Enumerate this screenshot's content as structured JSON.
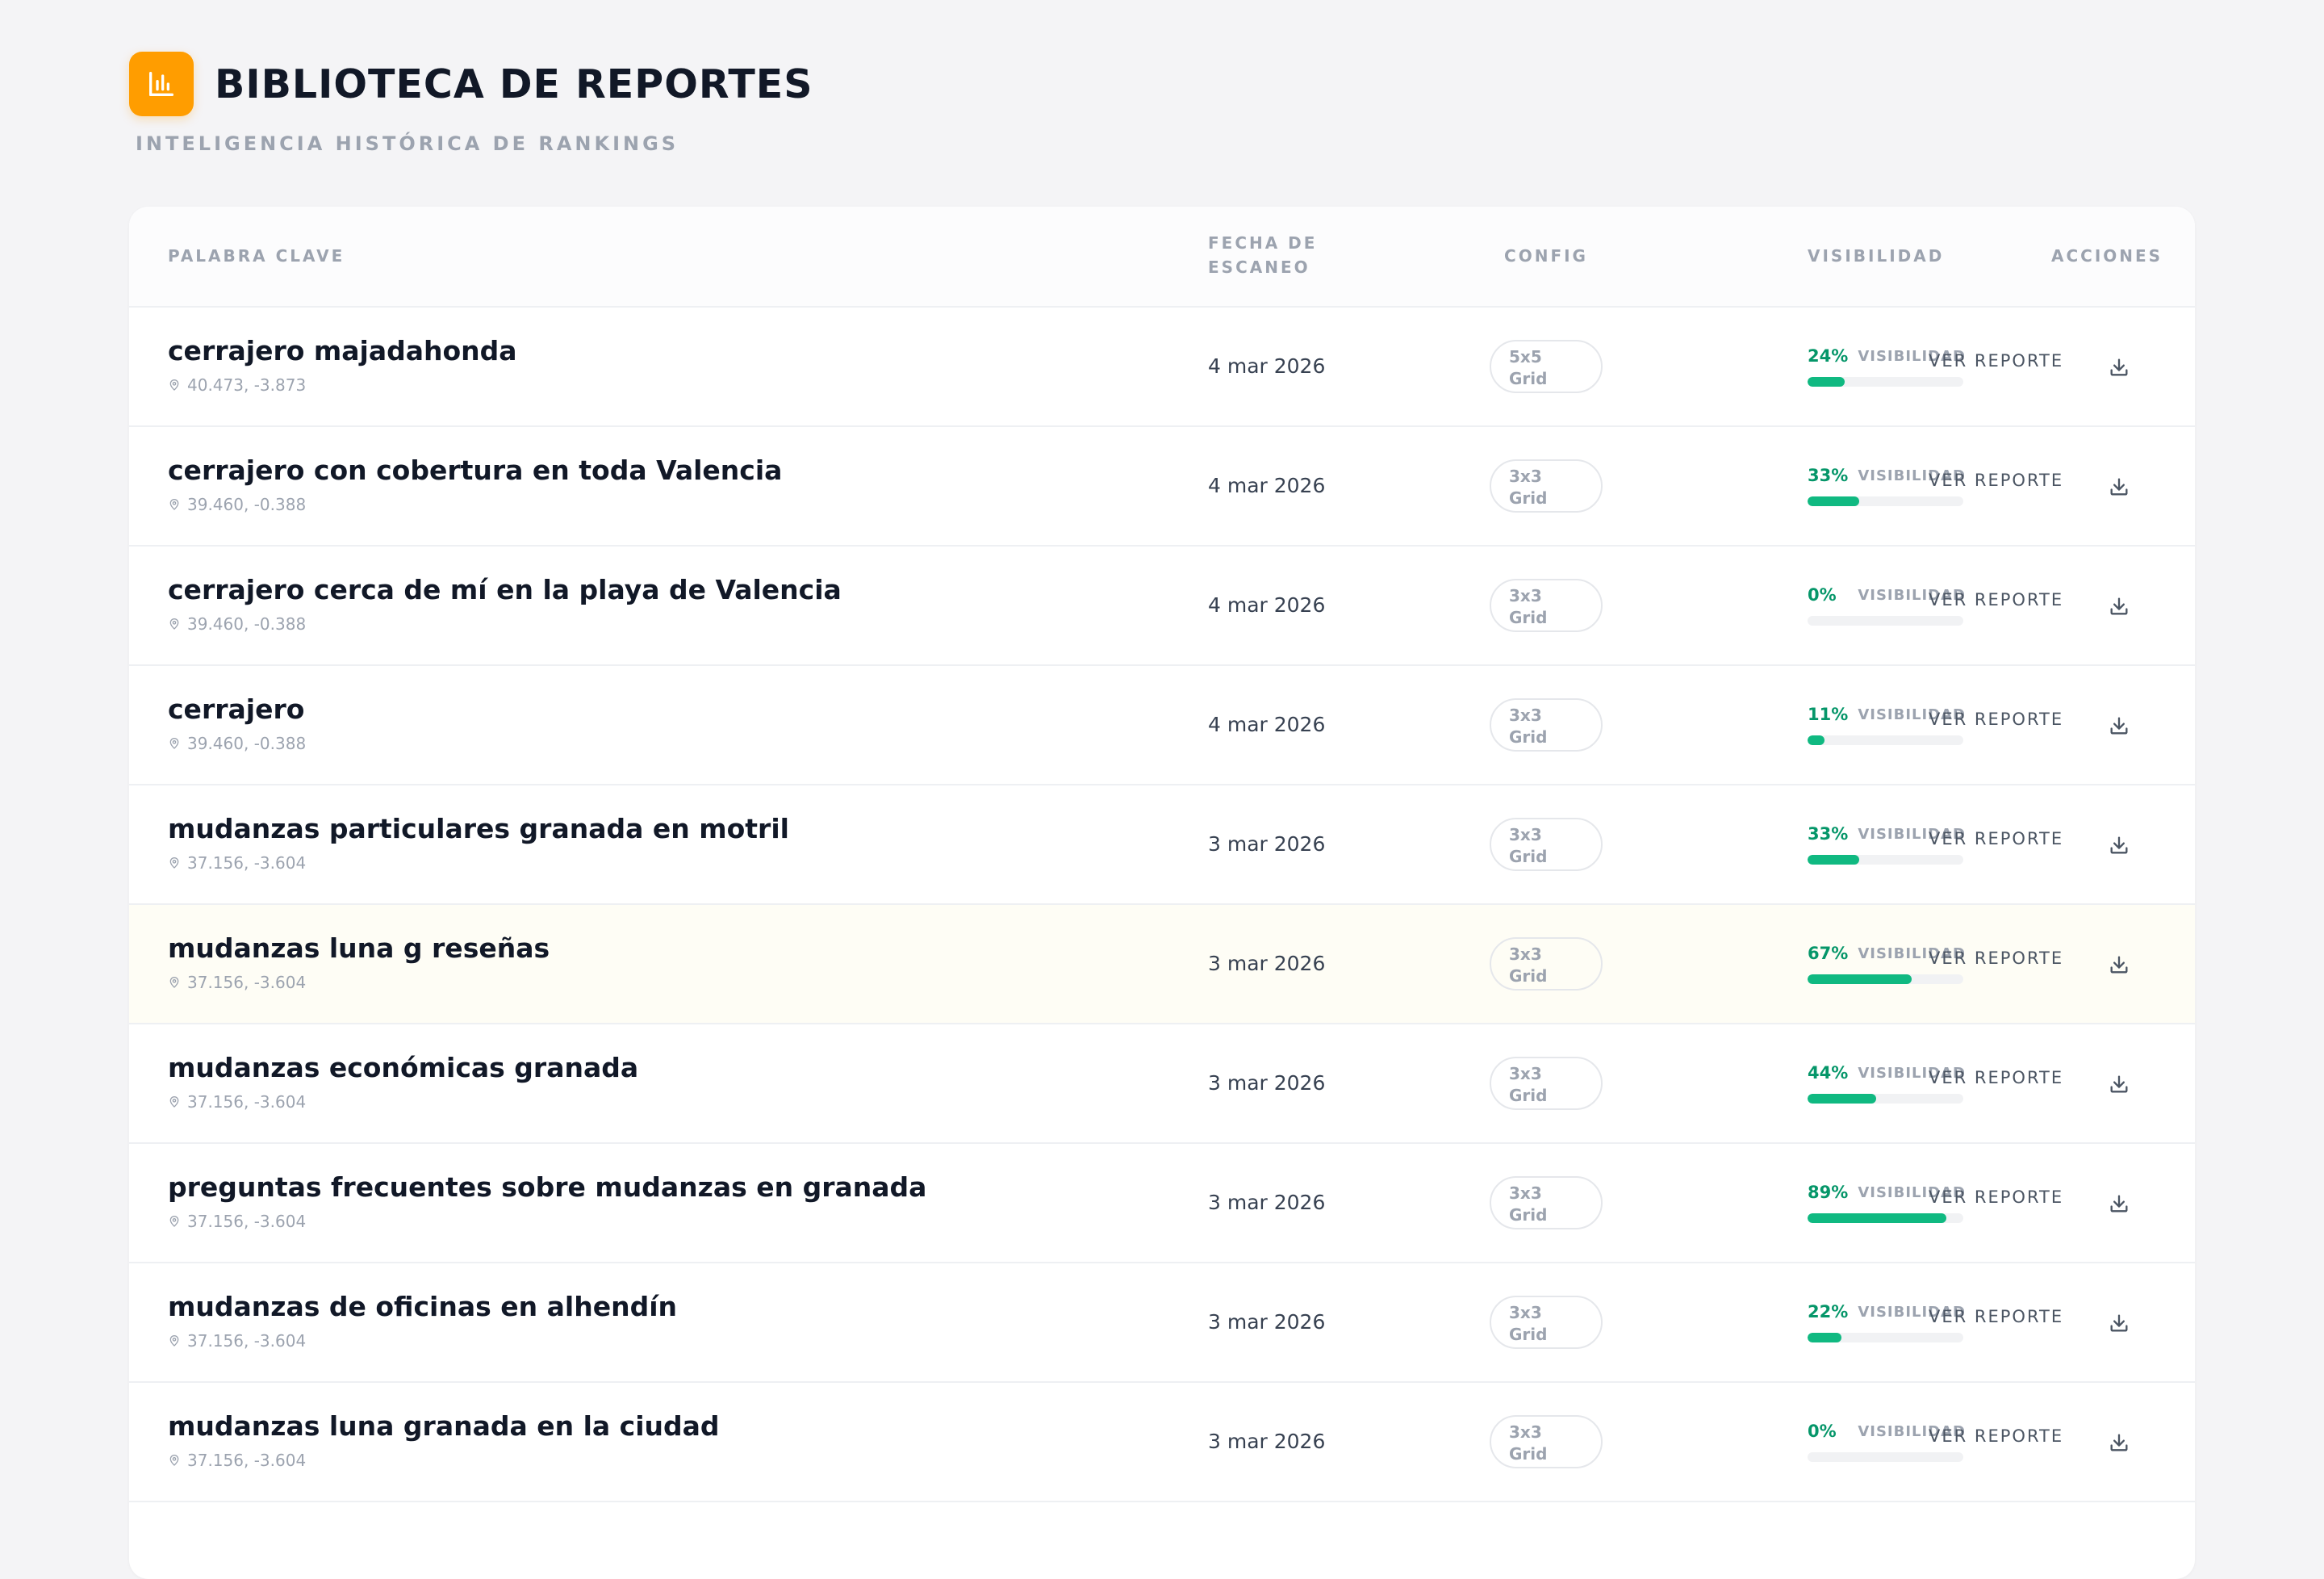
{
  "header": {
    "logo_icon": "bar-chart-icon",
    "title": "BIBLIOTECA DE REPORTES",
    "subtitle": "INTELIGENCIA HISTÓRICA DE RANKINGS"
  },
  "table": {
    "columns": {
      "keyword": "PALABRA CLAVE",
      "date": "FECHA DE ESCANEO",
      "config": "CONFIG",
      "visibility": "VISIBILIDAD",
      "actions": "ACCIONES"
    },
    "visibility_label": "VISIBILIDAD",
    "view_label": "VER REPORTE",
    "accent_color": "#10b981",
    "rows": [
      {
        "keyword": "cerrajero majadahonda",
        "coords": "40.473, -3.873",
        "date": "4 mar 2026",
        "grid_size": "5x5",
        "grid_label": "Grid",
        "visibility": 24,
        "visibility_text": "24%",
        "highlighted": false
      },
      {
        "keyword": "cerrajero con cobertura en toda Valencia",
        "coords": "39.460, -0.388",
        "date": "4 mar 2026",
        "grid_size": "3x3",
        "grid_label": "Grid",
        "visibility": 33,
        "visibility_text": "33%",
        "highlighted": false
      },
      {
        "keyword": "cerrajero cerca de mí en la playa de Valencia",
        "coords": "39.460, -0.388",
        "date": "4 mar 2026",
        "grid_size": "3x3",
        "grid_label": "Grid",
        "visibility": 0,
        "visibility_text": "0%",
        "highlighted": false
      },
      {
        "keyword": "cerrajero",
        "coords": "39.460, -0.388",
        "date": "4 mar 2026",
        "grid_size": "3x3",
        "grid_label": "Grid",
        "visibility": 11,
        "visibility_text": "11%",
        "highlighted": false
      },
      {
        "keyword": "mudanzas particulares granada en motril",
        "coords": "37.156, -3.604",
        "date": "3 mar 2026",
        "grid_size": "3x3",
        "grid_label": "Grid",
        "visibility": 33,
        "visibility_text": "33%",
        "highlighted": false
      },
      {
        "keyword": "mudanzas luna g reseñas",
        "coords": "37.156, -3.604",
        "date": "3 mar 2026",
        "grid_size": "3x3",
        "grid_label": "Grid",
        "visibility": 67,
        "visibility_text": "67%",
        "highlighted": true
      },
      {
        "keyword": "mudanzas económicas granada",
        "coords": "37.156, -3.604",
        "date": "3 mar 2026",
        "grid_size": "3x3",
        "grid_label": "Grid",
        "visibility": 44,
        "visibility_text": "44%",
        "highlighted": false
      },
      {
        "keyword": "preguntas frecuentes sobre mudanzas en granada",
        "coords": "37.156, -3.604",
        "date": "3 mar 2026",
        "grid_size": "3x3",
        "grid_label": "Grid",
        "visibility": 89,
        "visibility_text": "89%",
        "highlighted": false
      },
      {
        "keyword": "mudanzas de oficinas en alhendín",
        "coords": "37.156, -3.604",
        "date": "3 mar 2026",
        "grid_size": "3x3",
        "grid_label": "Grid",
        "visibility": 22,
        "visibility_text": "22%",
        "highlighted": false
      },
      {
        "keyword": "mudanzas luna granada en la ciudad",
        "coords": "37.156, -3.604",
        "date": "3 mar 2026",
        "grid_size": "3x3",
        "grid_label": "Grid",
        "visibility": 0,
        "visibility_text": "0%",
        "highlighted": false
      }
    ]
  }
}
